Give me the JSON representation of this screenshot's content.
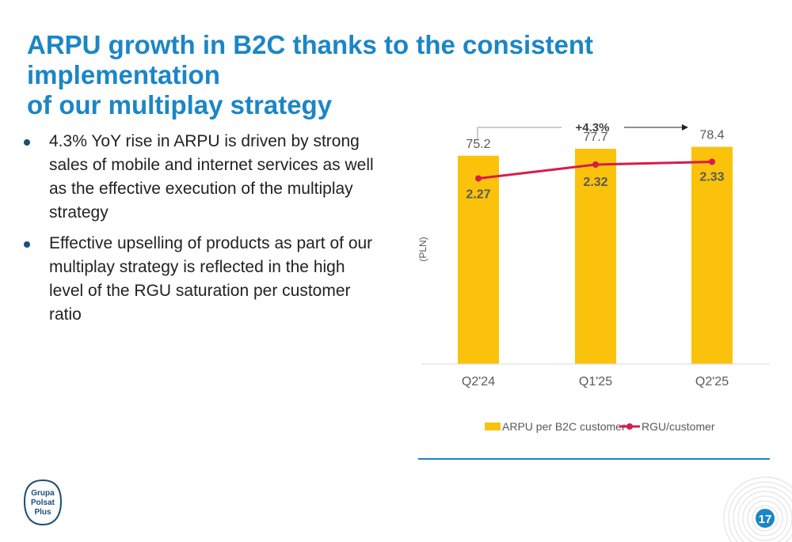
{
  "slide": {
    "title_line1": "ARPU growth in B2C thanks to the consistent implementation",
    "title_line2": "of our multiplay strategy",
    "bullets": [
      "4.3% YoY rise in ARPU is driven by strong sales of mobile and internet services as well as the effective execution of the multiplay strategy",
      "Effective upselling of products as part of our multiplay strategy is reflected in the high level of the RGU saturation per customer ratio"
    ],
    "page_number": "17",
    "logo_lines": [
      "Grupa",
      "Polsat",
      "Plus"
    ]
  },
  "colors": {
    "title": "#1b86c6",
    "bar": "#fbc20c",
    "line": "#d81b4a",
    "accent_rule": "#1b86c6",
    "bullet_dot": "#1b4f7a",
    "page_badge": "#1b86c6"
  },
  "chart_data": {
    "type": "bar",
    "categories": [
      "Q2'24",
      "Q1'25",
      "Q2'25"
    ],
    "series": [
      {
        "name": "ARPU per B2C customer",
        "type": "bar",
        "values": [
          75.2,
          77.7,
          78.4
        ],
        "labels": [
          "75.2",
          "77.7",
          "78.4"
        ]
      },
      {
        "name": "RGU/customer",
        "type": "line",
        "values": [
          2.27,
          2.32,
          2.33
        ],
        "labels": [
          "2.27",
          "2.32",
          "2.33"
        ]
      }
    ],
    "ylabel": "(PLN)",
    "ylim": [
      0,
      80
    ],
    "secondary_ylim": [
      1.6,
      2.4
    ],
    "annotation": "+4.3%",
    "grid": false,
    "legend_position": "bottom"
  }
}
